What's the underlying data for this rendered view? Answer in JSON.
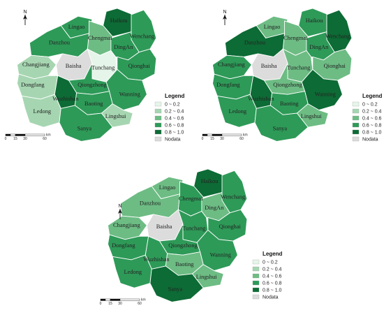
{
  "colors": {
    "c1": "#e5f5e9",
    "c2": "#a6d6b1",
    "c3": "#6dbc84",
    "c4": "#2e9a58",
    "c5": "#0d6b35",
    "nodata": "#dcdcdc",
    "border": "#ffffff"
  },
  "legend": {
    "title": "Legend",
    "items": [
      {
        "key": "c1",
        "label": "0 ~ 0.2"
      },
      {
        "key": "c2",
        "label": "0.2 ~ 0.4"
      },
      {
        "key": "c3",
        "label": "0.4 ~ 0.6"
      },
      {
        "key": "c4",
        "label": "0.6 ~ 0.8"
      },
      {
        "key": "c5",
        "label": "0.8 ~ 1.0"
      },
      {
        "key": "nodata",
        "label": "Nodata"
      }
    ]
  },
  "north_label": "N",
  "scale": {
    "ticks": [
      "0",
      "15",
      "30",
      "60"
    ],
    "unit": "km"
  },
  "region_names": {
    "haikou": "Haikou",
    "wenchang": "Wenchang",
    "lingao": "Lingao",
    "chengmai": "Chengmai",
    "danzhou": "Danzhou",
    "dingan": "DingAn",
    "changjiang": "Changjiang",
    "baisha": "Baisha",
    "tunchang": "Tunchang",
    "qionghai": "Qionghai",
    "dongfang": "Dongfang",
    "qiongzhong": "Qiongzhong",
    "wuzhishan": "Wuzhishan",
    "wanning": "Wanning",
    "ledong": "Ledong",
    "baoting": "Baoting",
    "lingshui": "Lingshui",
    "sanya": "Sanya"
  },
  "maps": [
    {
      "id": "map-1",
      "classes": {
        "haikou": "c5",
        "wenchang": "c4",
        "lingao": "c4",
        "chengmai": "c3",
        "danzhou": "c4",
        "dingan": "c4",
        "changjiang": "c2",
        "baisha": "nodata",
        "tunchang": "c1",
        "qionghai": "c4",
        "dongfang": "c2",
        "qiongzhong": "c4",
        "wuzhishan": "c5",
        "wanning": "c4",
        "ledong": "c2",
        "baoting": "c4",
        "lingshui": "c2",
        "sanya": "c4"
      }
    },
    {
      "id": "map-2",
      "classes": {
        "haikou": "c4",
        "wenchang": "c5",
        "lingao": "c3",
        "chengmai": "c3",
        "danzhou": "c5",
        "dingan": "c4",
        "changjiang": "c4",
        "baisha": "nodata",
        "tunchang": "c3",
        "qionghai": "c3",
        "dongfang": "c4",
        "qiongzhong": "c3",
        "wuzhishan": "c5",
        "wanning": "c5",
        "ledong": "c4",
        "baoting": "c4",
        "lingshui": "c3",
        "sanya": "c4"
      }
    },
    {
      "id": "map-3",
      "classes": {
        "haikou": "c5",
        "wenchang": "c4",
        "lingao": "c3",
        "chengmai": "c4",
        "danzhou": "c3",
        "dingan": "c3",
        "changjiang": "c3",
        "baisha": "nodata",
        "tunchang": "c4",
        "qionghai": "c4",
        "dongfang": "c4",
        "qiongzhong": "c4",
        "wuzhishan": "c4",
        "wanning": "c4",
        "ledong": "c4",
        "baoting": "c3",
        "lingshui": "c3",
        "sanya": "c5"
      }
    }
  ]
}
